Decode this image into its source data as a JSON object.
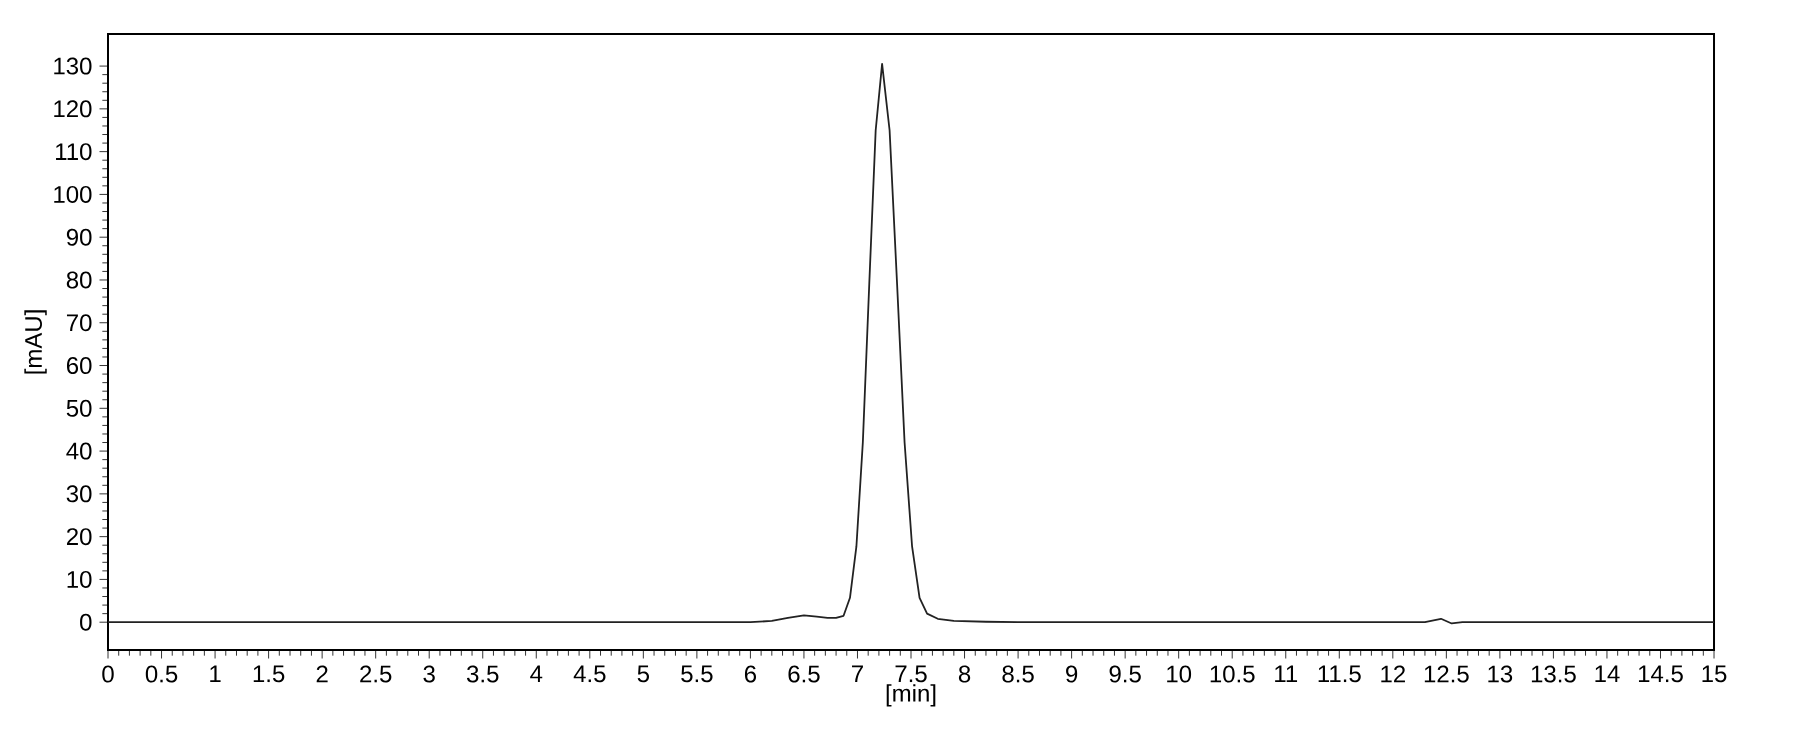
{
  "chart_data": {
    "type": "line",
    "xlabel": "[min]",
    "ylabel": "[mAU]",
    "x": [
      0,
      3.0,
      6.0,
      6.2,
      6.35,
      6.5,
      6.62,
      6.72,
      6.8,
      6.87,
      6.93,
      6.99,
      7.05,
      7.11,
      7.17,
      7.23,
      7.3,
      7.37,
      7.44,
      7.51,
      7.58,
      7.65,
      7.75,
      7.9,
      8.2,
      8.5,
      10.0,
      12.3,
      12.45,
      12.55,
      12.65,
      15
    ],
    "series": [
      {
        "color": "#222222",
        "values": [
          0,
          0,
          0,
          0.3,
          1.0,
          1.6,
          1.3,
          1.0,
          1.0,
          1.5,
          5.7,
          17.7,
          42,
          79,
          115,
          130.5,
          115,
          79,
          42,
          17.7,
          5.7,
          2,
          0.8,
          0.3,
          0.1,
          0,
          0,
          0,
          0.8,
          -0.3,
          0,
          0
        ]
      }
    ],
    "xlim": [
      0,
      15
    ],
    "ylim": [
      -6.5,
      137.5
    ],
    "xticks": [
      0,
      0.5,
      1,
      1.5,
      2,
      2.5,
      3,
      3.5,
      4,
      4.5,
      5,
      5.5,
      6,
      6.5,
      7,
      7.5,
      8,
      8.5,
      9,
      9.5,
      10,
      10.5,
      11,
      11.5,
      12,
      12.5,
      13,
      13.5,
      14,
      14.5,
      15
    ],
    "yticks": [
      0,
      10,
      20,
      30,
      40,
      50,
      60,
      70,
      80,
      90,
      100,
      110,
      120,
      130
    ],
    "grid": false,
    "legend": false,
    "marker": "none",
    "line_style": "solid"
  }
}
